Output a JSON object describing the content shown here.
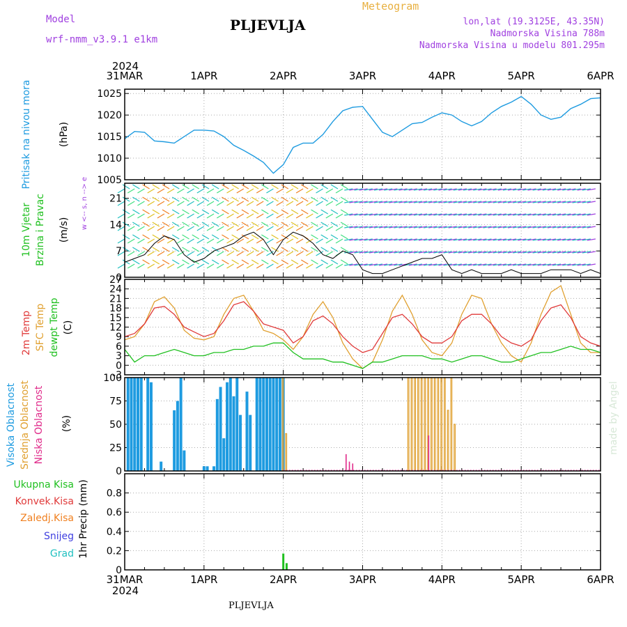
{
  "header": {
    "model_label": "Model",
    "model_name": "wrf-nmm_v3.9.1 e1km",
    "title": "PLJEVLJA",
    "meteogram": "Meteogram",
    "lonlat": "lon,lat (19.3125E, 43.35N)",
    "altitude": "Nadmorska Visina 788m",
    "model_altitude": "Nadmorska Visina u modelu 801.295m",
    "year_top": "2024",
    "year_bottom": "2024",
    "footer": "PLJEVLJA",
    "watermark": "made by Angel"
  },
  "colors": {
    "purple": "#a040e0",
    "orange": "#e8b040",
    "pressure": "#1e9be0",
    "t2m": "#e03a3a",
    "sfc": "#e0a030",
    "dewpt": "#20c020",
    "high_cloud": "#1e9be0",
    "mid_cloud": "#e0a030",
    "low_cloud": "#e02a8a",
    "total_precip": "#20c020",
    "conv_precip": "#e03a3a",
    "frozen_precip": "#f08020",
    "snow": "#4040e0",
    "hail": "#20c0c0"
  },
  "chart_data": [
    {
      "type": "line",
      "panel": "pressure",
      "ylabel": "Pritisak na nivou mora",
      "unit": "(hPa)",
      "ylim": [
        1005,
        1026
      ],
      "yticks": [
        1005,
        1010,
        1015,
        1020,
        1025
      ],
      "x_ticks": [
        "31MAR",
        "1APR",
        "2APR",
        "3APR",
        "4APR",
        "5APR",
        "6APR"
      ],
      "grid": true,
      "series": [
        {
          "t_hours": [
            0,
            3,
            6,
            9,
            12,
            15,
            18,
            21,
            24,
            27,
            30,
            33,
            36,
            39,
            42,
            45,
            48,
            51,
            54,
            57,
            60,
            63,
            66,
            69,
            72,
            75,
            78,
            81,
            84,
            87,
            90,
            93,
            96,
            99,
            102,
            105,
            108,
            111,
            114,
            117,
            120,
            123,
            126,
            129,
            132,
            135,
            138,
            141,
            144
          ],
          "values": [
            1014.5,
            1016.2,
            1016.0,
            1014.0,
            1013.8,
            1013.5,
            1015.0,
            1016.5,
            1016.5,
            1016.3,
            1015.0,
            1013.0,
            1011.8,
            1010.5,
            1009.0,
            1006.5,
            1008.5,
            1012.5,
            1013.5,
            1013.5,
            1015.5,
            1018.5,
            1021.0,
            1021.8,
            1022.0,
            1019.0,
            1016.0,
            1015.0,
            1016.5,
            1018.0,
            1018.3,
            1019.5,
            1020.5,
            1020.0,
            1018.5,
            1017.5,
            1018.5,
            1020.5,
            1022.0,
            1023.0,
            1024.3,
            1022.5,
            1020.0,
            1019.0,
            1019.5,
            1021.5,
            1022.5,
            1023.8,
            1024.0
          ]
        }
      ]
    },
    {
      "type": "line",
      "panel": "wind",
      "ylabel": "10m Vjetar Brzina i Pravac",
      "unit": "(m/s)",
      "ylim": [
        0,
        25
      ],
      "yticks": [
        0,
        7,
        14,
        21
      ],
      "compass_legend": "w <-- s, n --> e",
      "series": [
        {
          "name": "speed",
          "t_hours": [
            0,
            3,
            6,
            9,
            12,
            15,
            18,
            21,
            24,
            27,
            30,
            33,
            36,
            39,
            42,
            45,
            48,
            51,
            54,
            57,
            60,
            63,
            66,
            69,
            72,
            75,
            78,
            81,
            84,
            87,
            90,
            93,
            96,
            99,
            102,
            105,
            108,
            111,
            114,
            117,
            120,
            123,
            126,
            129,
            132,
            135,
            138,
            141,
            144
          ],
          "values": [
            4,
            5,
            6,
            9,
            11,
            10,
            6,
            4,
            5,
            7,
            8,
            9,
            11,
            12,
            10,
            6,
            10,
            12,
            11,
            9,
            6,
            5,
            7,
            6,
            2,
            1,
            1,
            2,
            3,
            4,
            5,
            5,
            6,
            2,
            1,
            2,
            1,
            1,
            1,
            2,
            1,
            1,
            1,
            2,
            2,
            2,
            1,
            2,
            1
          ]
        }
      ]
    },
    {
      "type": "line",
      "panel": "temperature",
      "series_labels": [
        "2m Temp",
        "SFC Temp",
        "dewpt Temp"
      ],
      "unit": "(C)",
      "ylim": [
        -3,
        27
      ],
      "yticks": [
        -3,
        0,
        3,
        6,
        9,
        12,
        15,
        18,
        21,
        24,
        27
      ],
      "series": [
        {
          "name": "2m Temp",
          "t_hours": [
            0,
            3,
            6,
            9,
            12,
            15,
            18,
            21,
            24,
            27,
            30,
            33,
            36,
            39,
            42,
            45,
            48,
            51,
            54,
            57,
            60,
            63,
            66,
            69,
            72,
            75,
            78,
            81,
            84,
            87,
            90,
            93,
            96,
            99,
            102,
            105,
            108,
            111,
            114,
            117,
            120,
            123,
            126,
            129,
            132,
            135,
            138,
            141,
            144
          ],
          "values": [
            9,
            10,
            13,
            18,
            18.5,
            16,
            12,
            10.5,
            9,
            10,
            14,
            19,
            20,
            17,
            13,
            12,
            11,
            7,
            9,
            14,
            15.5,
            13,
            9,
            6,
            4,
            5,
            10,
            15,
            16,
            13,
            9,
            7,
            7,
            9,
            14,
            16,
            16,
            13,
            9,
            7,
            6,
            8,
            14,
            18,
            19,
            15,
            9,
            7,
            6
          ]
        },
        {
          "name": "SFC Temp",
          "t_hours": [
            0,
            3,
            6,
            9,
            12,
            15,
            18,
            21,
            24,
            27,
            30,
            33,
            36,
            39,
            42,
            45,
            48,
            51,
            54,
            57,
            60,
            63,
            66,
            69,
            72,
            75,
            78,
            81,
            84,
            87,
            90,
            93,
            96,
            99,
            102,
            105,
            108,
            111,
            114,
            117,
            120,
            123,
            126,
            129,
            132,
            135,
            138,
            141,
            144
          ],
          "values": [
            8,
            9,
            13,
            20,
            21.5,
            18,
            11,
            8.5,
            8,
            9,
            16,
            21,
            22,
            17,
            11,
            10,
            8,
            5,
            9,
            16,
            20,
            15,
            7,
            2,
            -1,
            1,
            8,
            17,
            22,
            16,
            8,
            4,
            3,
            7,
            16,
            22,
            21,
            13,
            7,
            3,
            1,
            7,
            16,
            23,
            25,
            16,
            7,
            4,
            4
          ]
        },
        {
          "name": "dewpt Temp",
          "t_hours": [
            0,
            3,
            6,
            9,
            12,
            15,
            18,
            21,
            24,
            27,
            30,
            33,
            36,
            39,
            42,
            45,
            48,
            51,
            54,
            57,
            60,
            63,
            66,
            69,
            72,
            75,
            78,
            81,
            84,
            87,
            90,
            93,
            96,
            99,
            102,
            105,
            108,
            111,
            114,
            117,
            120,
            123,
            126,
            129,
            132,
            135,
            138,
            141,
            144
          ],
          "values": [
            5,
            1,
            3,
            3,
            4,
            5,
            4,
            3,
            3,
            4,
            4,
            5,
            5,
            6,
            6,
            7,
            7,
            4,
            2,
            2,
            2,
            1,
            1,
            0,
            -1,
            1,
            1,
            2,
            3,
            3,
            3,
            2,
            2,
            1,
            2,
            3,
            3,
            2,
            1,
            1,
            2,
            3,
            4,
            4,
            5,
            6,
            5,
            5,
            4
          ]
        }
      ]
    },
    {
      "type": "bar",
      "panel": "cloud",
      "series_labels": [
        "Visoka Oblacnost",
        "Srednja Oblacnost",
        "Niska Oblacnost"
      ],
      "unit": "(%)",
      "ylim": [
        0,
        100
      ],
      "yticks": [
        0,
        25,
        50,
        75,
        100
      ],
      "series": [
        {
          "name": "Visoka Oblacnost",
          "t_hours": [
            1,
            2,
            3,
            4,
            5,
            6,
            7,
            8,
            9,
            10,
            11,
            12,
            13,
            14,
            15,
            16,
            17,
            18,
            19,
            20,
            21,
            22,
            23,
            24,
            25,
            26,
            27,
            28,
            29,
            30,
            31,
            32,
            33,
            34,
            35,
            36,
            37,
            38,
            39,
            40,
            41,
            42,
            43,
            44,
            45,
            46,
            47,
            48
          ],
          "values": [
            100,
            100,
            100,
            100,
            100,
            0,
            100,
            95,
            0,
            0,
            10,
            0,
            0,
            0,
            65,
            75,
            100,
            22,
            0,
            0,
            0,
            0,
            0,
            5,
            5,
            0,
            5,
            77,
            90,
            35,
            95,
            100,
            80,
            100,
            60,
            0,
            85,
            60,
            0,
            100,
            100,
            100,
            100,
            100,
            100,
            100,
            100,
            100
          ]
        },
        {
          "name": "Srednja Oblacnost",
          "t_hours": [
            48,
            49,
            50,
            51,
            52,
            53,
            54,
            55,
            56,
            57,
            58,
            59,
            60,
            61,
            62,
            63,
            64,
            65,
            66,
            67,
            68,
            69,
            70,
            71,
            72,
            73,
            74,
            75,
            76,
            77,
            78,
            79,
            80,
            81,
            82,
            83,
            84,
            85,
            86,
            87,
            88,
            89,
            90,
            91,
            92,
            93,
            94,
            95,
            96,
            97,
            98,
            99,
            100
          ],
          "values": [
            100,
            40,
            0,
            0,
            0,
            0,
            0,
            0,
            0,
            0,
            0,
            0,
            0,
            0,
            0,
            0,
            0,
            0,
            0,
            0,
            0,
            0,
            0,
            0,
            0,
            0,
            0,
            0,
            0,
            0,
            0,
            0,
            0,
            0,
            0,
            0,
            0,
            0,
            100,
            100,
            100,
            100,
            100,
            100,
            100,
            100,
            100,
            100,
            100,
            100,
            65,
            100,
            50
          ]
        },
        {
          "name": "Niska Oblacnost",
          "t_hours": [
            67,
            68,
            69,
            92
          ],
          "values": [
            18,
            10,
            8,
            38
          ]
        }
      ]
    },
    {
      "type": "bar",
      "panel": "precip",
      "series_labels": [
        "Ukupna Kisa",
        "Konvek.Kisa",
        "Zaledj.Kisa",
        "Snijeg",
        "Grad"
      ],
      "ylabel": "1hr Precip",
      "unit": "(mm)",
      "ylim": [
        0,
        1.0
      ],
      "yticks": [
        0,
        0.2,
        0.4,
        0.6,
        0.8
      ],
      "series": [
        {
          "name": "Ukupna Kisa",
          "t_hours": [
            48,
            49
          ],
          "values": [
            0.17,
            0.07
          ]
        }
      ]
    }
  ]
}
